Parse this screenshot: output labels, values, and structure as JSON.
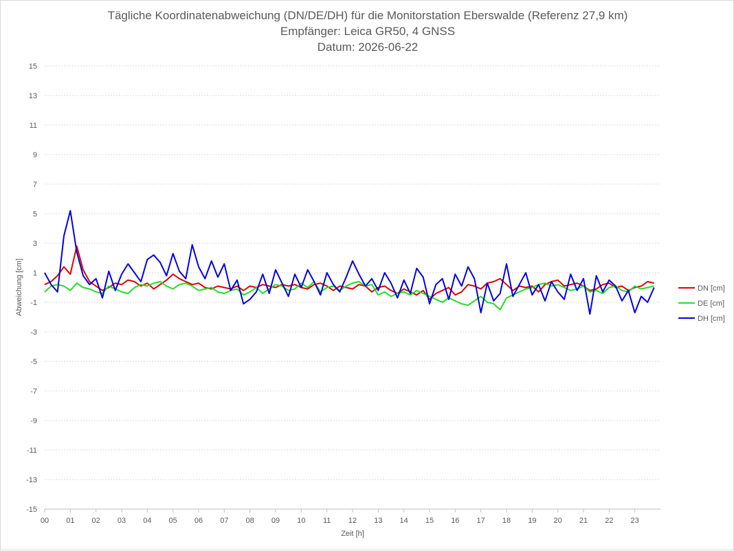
{
  "chart_data": {
    "type": "line",
    "title": "Tägliche Koordinatenabweichung (DN/DE/DH) für die Monitorstation Eberswalde (Referenz 27,9 km)",
    "subtitle": "Empfänger: Leica GR50, 4 GNSS",
    "date_line": "Datum: 2026-06-22",
    "xlabel": "Zeit [h]",
    "ylabel": "Abweichung [cm]",
    "xlim": [
      0,
      24
    ],
    "ylim": [
      -15,
      15
    ],
    "x_ticks": [
      "00",
      "01",
      "02",
      "03",
      "04",
      "05",
      "06",
      "07",
      "08",
      "09",
      "10",
      "11",
      "12",
      "13",
      "14",
      "15",
      "16",
      "17",
      "18",
      "19",
      "20",
      "21",
      "22",
      "23"
    ],
    "y_ticks": [
      "15",
      "13",
      "11",
      "9",
      "7",
      "5",
      "3",
      "1",
      "-1",
      "-3",
      "-5",
      "-7",
      "-9",
      "-11",
      "-13",
      "-15"
    ],
    "grid": true,
    "legend_position": "right",
    "colors": {
      "DN": "#e00000",
      "DE": "#22dd22",
      "DH": "#0000dd"
    },
    "x": [
      0.0,
      0.25,
      0.5,
      0.75,
      1.0,
      1.25,
      1.5,
      1.75,
      2.0,
      2.25,
      2.5,
      2.75,
      3.0,
      3.25,
      3.5,
      3.75,
      4.0,
      4.25,
      4.5,
      4.75,
      5.0,
      5.25,
      5.5,
      5.75,
      6.0,
      6.25,
      6.5,
      6.75,
      7.0,
      7.25,
      7.5,
      7.75,
      8.0,
      8.25,
      8.5,
      8.75,
      9.0,
      9.25,
      9.5,
      9.75,
      10.0,
      10.25,
      10.5,
      10.75,
      11.0,
      11.25,
      11.5,
      11.75,
      12.0,
      12.25,
      12.5,
      12.75,
      13.0,
      13.25,
      13.5,
      13.75,
      14.0,
      14.25,
      14.5,
      14.75,
      15.0,
      15.25,
      15.5,
      15.75,
      16.0,
      16.25,
      16.5,
      16.75,
      17.0,
      17.25,
      17.5,
      17.75,
      18.0,
      18.25,
      18.5,
      18.75,
      19.0,
      19.25,
      19.5,
      19.75,
      20.0,
      20.25,
      20.5,
      20.75,
      21.0,
      21.25,
      21.5,
      21.75,
      22.0,
      22.25,
      22.5,
      22.75,
      23.0,
      23.25,
      23.5,
      23.75
    ],
    "series": [
      {
        "name": "DN [cm]",
        "values": [
          0.2,
          0.4,
          0.8,
          1.4,
          0.9,
          2.8,
          1.2,
          0.4,
          0.1,
          -0.2,
          0.0,
          0.3,
          0.2,
          0.5,
          0.4,
          0.1,
          0.3,
          -0.1,
          0.2,
          0.5,
          0.9,
          0.6,
          0.4,
          0.2,
          0.3,
          0.0,
          -0.1,
          0.1,
          0.0,
          -0.1,
          0.1,
          -0.2,
          0.1,
          0.0,
          0.2,
          0.1,
          0.0,
          0.2,
          0.1,
          0.2,
          0.0,
          -0.1,
          0.2,
          0.3,
          0.1,
          -0.2,
          0.1,
          0.0,
          -0.1,
          0.2,
          0.1,
          -0.3,
          0.0,
          0.1,
          -0.2,
          -0.4,
          -0.1,
          -0.3,
          -0.5,
          -0.2,
          -0.8,
          -0.4,
          -0.2,
          0.0,
          -0.5,
          -0.3,
          0.2,
          0.1,
          -0.1,
          0.3,
          0.4,
          0.6,
          0.2,
          -0.2,
          0.1,
          0.0,
          0.1,
          -0.3,
          0.2,
          0.4,
          0.5,
          0.1,
          0.2,
          0.3,
          0.1,
          -0.2,
          -0.1,
          0.2,
          0.3,
          0.0,
          0.1,
          -0.2,
          0.0,
          0.1,
          0.4,
          0.3
        ]
      },
      {
        "name": "DE [cm]",
        "values": [
          -0.3,
          0.1,
          0.2,
          0.1,
          -0.2,
          0.3,
          0.0,
          -0.1,
          -0.3,
          -0.4,
          0.1,
          -0.1,
          -0.3,
          -0.4,
          0.0,
          0.2,
          0.1,
          0.3,
          0.4,
          0.1,
          -0.1,
          0.2,
          0.3,
          0.1,
          -0.2,
          -0.1,
          0.0,
          -0.3,
          -0.4,
          -0.2,
          -0.1,
          -0.5,
          -0.3,
          0.0,
          -0.4,
          -0.1,
          0.2,
          0.1,
          -0.2,
          -0.1,
          0.3,
          0.0,
          0.4,
          -0.3,
          0.0,
          0.1,
          -0.2,
          0.1,
          0.3,
          0.4,
          0.1,
          0.2,
          -0.5,
          -0.3,
          -0.6,
          -0.4,
          -0.3,
          -0.5,
          -0.2,
          -0.4,
          -0.6,
          -0.8,
          -1.0,
          -0.7,
          -0.9,
          -1.1,
          -1.2,
          -0.9,
          -0.6,
          -1.0,
          -1.1,
          -1.5,
          -0.7,
          -0.5,
          -0.3,
          -0.1,
          0.0,
          0.2,
          0.3,
          0.1,
          0.2,
          0.0,
          -0.2,
          -0.1,
          0.1,
          -0.3,
          -0.2,
          -0.4,
          0.0,
          0.1,
          -0.2,
          -0.3,
          0.1,
          -0.1,
          0.0,
          0.1
        ]
      },
      {
        "name": "DH [cm]",
        "values": [
          1.0,
          0.2,
          -0.3,
          3.5,
          5.2,
          2.4,
          0.8,
          0.2,
          0.6,
          -0.7,
          1.1,
          -0.2,
          0.9,
          1.6,
          1.0,
          0.4,
          1.9,
          2.2,
          1.7,
          0.8,
          2.3,
          1.1,
          0.6,
          2.9,
          1.4,
          0.6,
          1.8,
          0.7,
          1.6,
          -0.2,
          0.5,
          -1.1,
          -0.8,
          -0.3,
          0.9,
          -0.4,
          1.2,
          0.3,
          -0.6,
          0.9,
          0.0,
          1.2,
          0.4,
          -0.5,
          1.0,
          0.2,
          -0.3,
          0.7,
          1.8,
          0.9,
          0.1,
          0.6,
          -0.2,
          1.0,
          0.3,
          -0.7,
          0.5,
          -0.4,
          1.3,
          0.7,
          -1.1,
          0.2,
          0.6,
          -0.8,
          0.9,
          0.1,
          1.4,
          0.6,
          -1.7,
          0.3,
          -0.9,
          -0.4,
          1.6,
          -0.6,
          0.2,
          1.0,
          -0.5,
          0.2,
          -0.9,
          0.4,
          -0.3,
          -0.8,
          0.9,
          -0.2,
          0.6,
          -1.8,
          0.8,
          -0.3,
          0.5,
          0.1,
          -0.9,
          -0.2,
          -1.7,
          -0.6,
          -1.0,
          0.0
        ]
      }
    ]
  }
}
